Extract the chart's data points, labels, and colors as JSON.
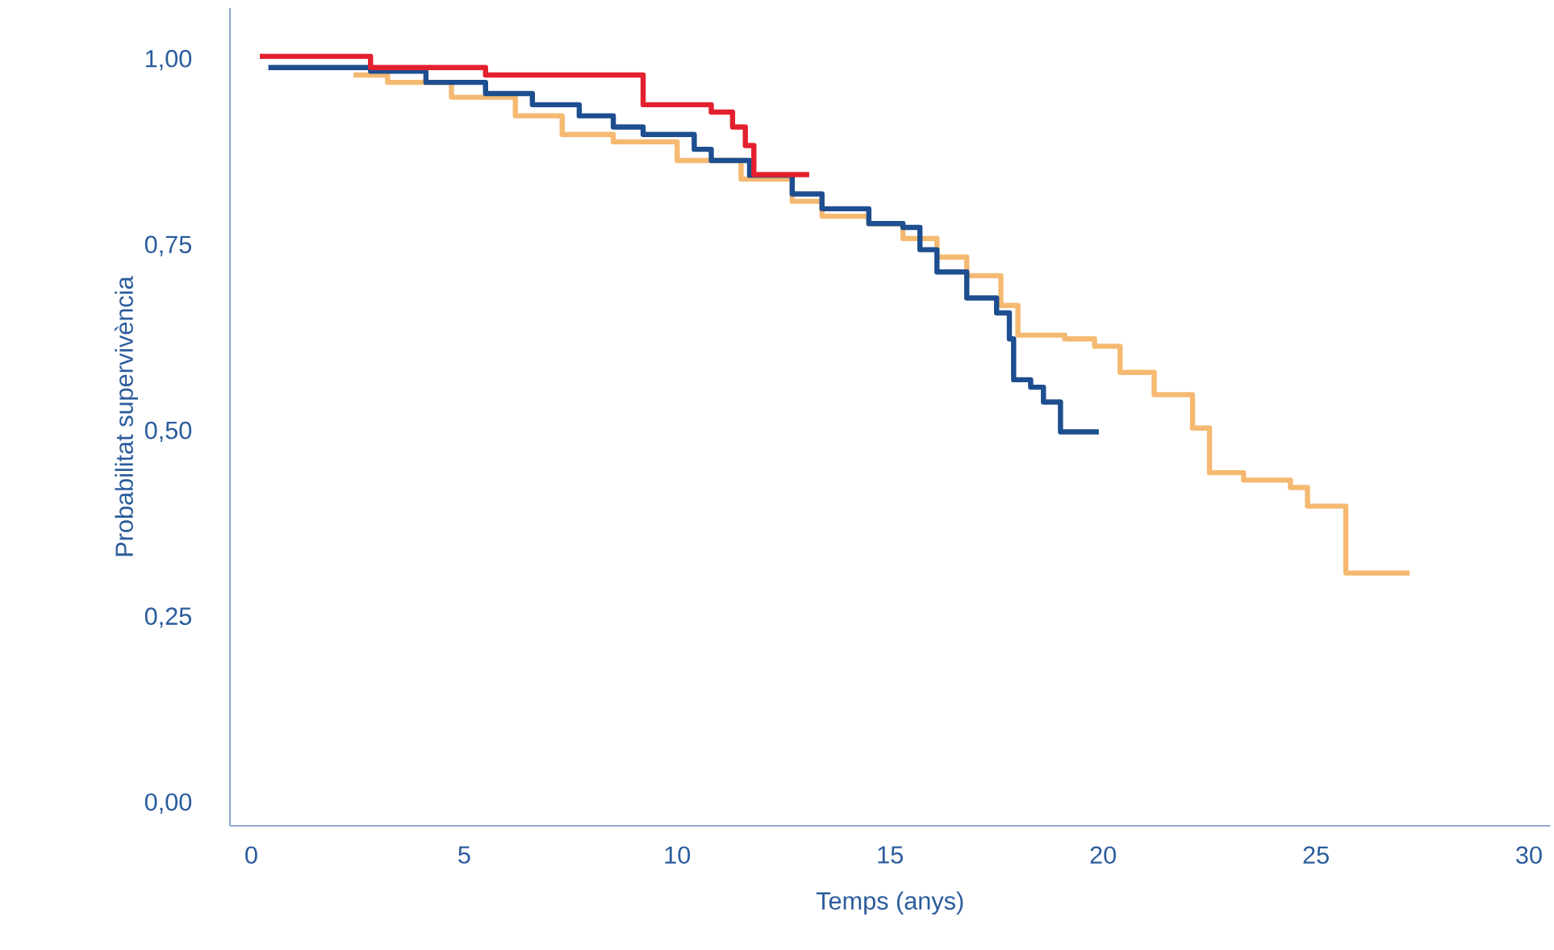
{
  "chart_data": {
    "type": "step",
    "xlabel": "Temps (anys)",
    "ylabel": "Probabilitat supervivència",
    "xlim": [
      -0.5,
      30.5
    ],
    "ylim": [
      -0.03,
      1.07
    ],
    "xticks": [
      0,
      5,
      10,
      15,
      20,
      25,
      30
    ],
    "yticks": [
      {
        "value": 0,
        "label": "0,00"
      },
      {
        "value": 0.25,
        "label": "0,25"
      },
      {
        "value": 0.5,
        "label": "0,50"
      },
      {
        "value": 0.75,
        "label": "0,75"
      },
      {
        "value": 1,
        "label": "1,00"
      }
    ],
    "grid": false,
    "marker": "none",
    "line_style": "solid",
    "series": [
      {
        "color": "#f5b971",
        "x": [
          2.4,
          3.2,
          4.7,
          6.2,
          7.3,
          8.5,
          10.0,
          11.5,
          12.7,
          13.4,
          14.5,
          15.3,
          16.1,
          16.8,
          17.6,
          18.0,
          19.1,
          19.8,
          20.4,
          21.2,
          22.1,
          22.5,
          23.3,
          24.4,
          24.8,
          25.7,
          27.2
        ],
        "values": [
          0.98,
          0.97,
          0.95,
          0.925,
          0.9,
          0.89,
          0.865,
          0.84,
          0.81,
          0.79,
          0.78,
          0.76,
          0.735,
          0.71,
          0.67,
          0.63,
          0.625,
          0.615,
          0.58,
          0.55,
          0.505,
          0.445,
          0.435,
          0.425,
          0.4,
          0.31,
          0.31
        ]
      },
      {
        "color": "#1d4e8f",
        "x": [
          0.4,
          2.0,
          2.8,
          4.1,
          5.5,
          6.6,
          7.7,
          8.5,
          9.2,
          10.4,
          10.8,
          11.7,
          12.7,
          13.4,
          14.5,
          15.3,
          15.7,
          16.1,
          16.8,
          17.5,
          17.8,
          17.9,
          18.3,
          18.6,
          19.0,
          19.9
        ],
        "values": [
          0.99,
          0.99,
          0.985,
          0.97,
          0.955,
          0.94,
          0.925,
          0.91,
          0.9,
          0.88,
          0.865,
          0.845,
          0.82,
          0.8,
          0.78,
          0.775,
          0.745,
          0.715,
          0.68,
          0.66,
          0.625,
          0.57,
          0.56,
          0.54,
          0.5,
          0.5
        ]
      },
      {
        "color": "#e3202e",
        "x": [
          0.2,
          2.3,
          2.8,
          5.5,
          9.2,
          10.8,
          11.3,
          11.6,
          11.8,
          13.1
        ],
        "values": [
          1.005,
          1.005,
          0.99,
          0.98,
          0.94,
          0.93,
          0.91,
          0.885,
          0.846,
          0.846
        ]
      }
    ]
  }
}
